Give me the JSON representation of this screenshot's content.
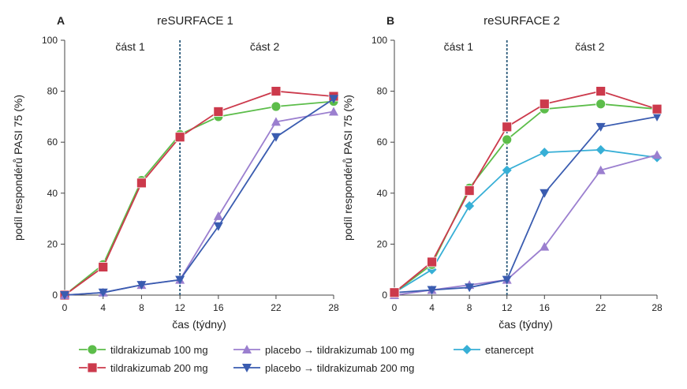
{
  "colors": {
    "tilr100": "#5cbd4a",
    "tilr200": "#cc3a4c",
    "pl100": "#9b7fcf",
    "pl200": "#3a5cb0",
    "etan": "#37afd6",
    "axis": "#444444",
    "divider": "#2b5a7a"
  },
  "legend": [
    {
      "key": "tilr100",
      "label": "tildrakizumab 100 mg",
      "marker": "circle",
      "color": "#5cbd4a"
    },
    {
      "key": "tilr200",
      "label": "tildrakizumab 200 mg",
      "marker": "square",
      "color": "#cc3a4c"
    },
    {
      "key": "pl100",
      "label": "placebo → tildrakizumab 100 mg",
      "marker": "triangle-up",
      "color": "#9b7fcf"
    },
    {
      "key": "pl200",
      "label": "placebo → tildrakizumab 200 mg",
      "marker": "triangle-down",
      "color": "#3a5cb0"
    },
    {
      "key": "etan",
      "label": "etanercept",
      "marker": "diamond",
      "color": "#37afd6"
    }
  ],
  "chart_data": [
    {
      "type": "line",
      "panel_letter": "A",
      "title": "reSURFACE 1",
      "xlabel": "čas (týdny)",
      "ylabel": "podíl respondérů PASI 75 (%)",
      "x_ticks": [
        0,
        4,
        8,
        12,
        16,
        22,
        28
      ],
      "y_ticks": [
        0,
        20,
        40,
        60,
        80,
        100
      ],
      "ylim": [
        0,
        100
      ],
      "divider_at": 12,
      "part_labels": [
        "část 1",
        "část 2"
      ],
      "series": [
        {
          "key": "tilr100",
          "name": "tildrakizumab 100 mg",
          "x": [
            0,
            4,
            8,
            12,
            16,
            22,
            28
          ],
          "values": [
            0,
            12,
            45,
            63,
            70,
            74,
            76
          ]
        },
        {
          "key": "tilr200",
          "name": "tildrakizumab 200 mg",
          "x": [
            0,
            4,
            8,
            12,
            16,
            22,
            28
          ],
          "values": [
            0,
            11,
            44,
            62,
            72,
            80,
            78
          ]
        },
        {
          "key": "pl100",
          "name": "placebo → tildrakizumab 100 mg",
          "x": [
            0,
            4,
            8,
            12,
            16,
            22,
            28
          ],
          "values": [
            0,
            1,
            4,
            6,
            31,
            68,
            72
          ]
        },
        {
          "key": "pl200",
          "name": "placebo → tildrakizumab 200 mg",
          "x": [
            0,
            4,
            8,
            12,
            16,
            22,
            28
          ],
          "values": [
            0,
            1,
            4,
            6,
            27,
            62,
            77
          ]
        }
      ]
    },
    {
      "type": "line",
      "panel_letter": "B",
      "title": "reSURFACE 2",
      "xlabel": "čas (týdny)",
      "ylabel": "podíl respondérů PASI 75 (%)",
      "x_ticks": [
        0,
        4,
        8,
        12,
        16,
        22,
        28
      ],
      "y_ticks": [
        0,
        20,
        40,
        60,
        80,
        100
      ],
      "ylim": [
        0,
        100
      ],
      "divider_at": 12,
      "part_labels": [
        "část 1",
        "část 2"
      ],
      "series": [
        {
          "key": "etan",
          "name": "etanercept",
          "x": [
            0,
            4,
            8,
            12,
            16,
            22,
            28
          ],
          "values": [
            1,
            10,
            35,
            49,
            56,
            57,
            54
          ]
        },
        {
          "key": "pl100",
          "name": "placebo → tildrakizumab 100 mg",
          "x": [
            0,
            4,
            8,
            12,
            16,
            22,
            28
          ],
          "values": [
            0,
            2,
            4,
            6,
            19,
            49,
            55
          ]
        },
        {
          "key": "pl200",
          "name": "placebo → tildrakizumab 200 mg",
          "x": [
            0,
            4,
            8,
            12,
            16,
            22,
            28
          ],
          "values": [
            1,
            2,
            3,
            6,
            40,
            66,
            70
          ]
        },
        {
          "key": "tilr100",
          "name": "tildrakizumab 100 mg",
          "x": [
            0,
            4,
            8,
            12,
            16,
            22,
            28
          ],
          "values": [
            1,
            12,
            42,
            61,
            73,
            75,
            73
          ]
        },
        {
          "key": "tilr200",
          "name": "tildrakizumab 200 mg",
          "x": [
            0,
            4,
            8,
            12,
            16,
            22,
            28
          ],
          "values": [
            1,
            13,
            41,
            66,
            75,
            80,
            73
          ]
        }
      ]
    }
  ]
}
